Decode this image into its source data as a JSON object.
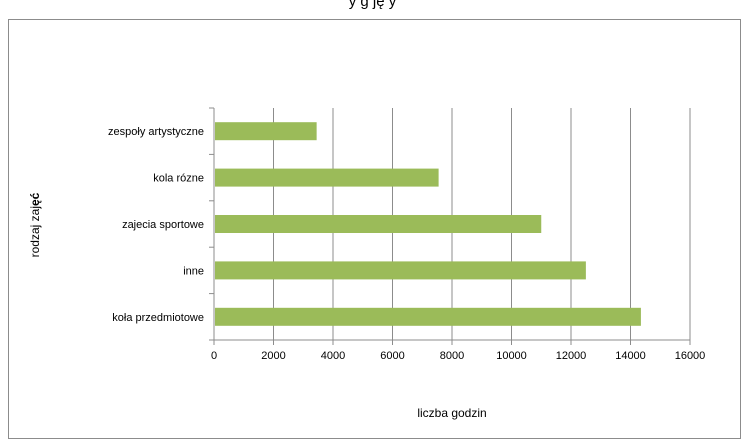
{
  "page": {
    "top_title": "y            g        ję           y"
  },
  "chart_data": {
    "type": "bar",
    "orientation": "horizontal",
    "categories": [
      "koła przedmiotowe",
      "inne",
      "zajecia sportowe",
      "kola rózne",
      "zespoły artystyczne"
    ],
    "values": [
      14350,
      12500,
      11000,
      7550,
      3450
    ],
    "xlabel": "liczba godzin",
    "ylabel_plain": "rodzaj zaj",
    "ylabel_bold": "ęć",
    "xlim": [
      0,
      16000
    ],
    "xticks": [
      "0",
      "2000",
      "4000",
      "6000",
      "8000",
      "10000",
      "12000",
      "14000",
      "16000"
    ],
    "grid": "vertical",
    "bar_color": "#9bbb59",
    "legend": "none"
  }
}
